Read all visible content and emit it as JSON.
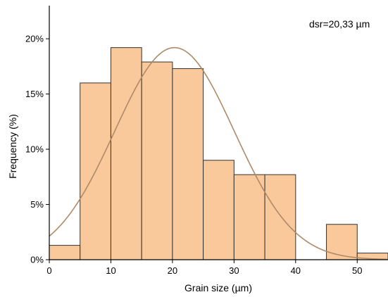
{
  "chart_data": {
    "type": "histogram",
    "xlabel": "Grain size (µm)",
    "ylabel": "Frequency (%)",
    "xlim": [
      0,
      55
    ],
    "ylim": [
      0,
      23
    ],
    "x_ticks": [
      0,
      10,
      20,
      30,
      40,
      50
    ],
    "x_tick_labels": [
      "0",
      "10",
      "20",
      "30",
      "40",
      "50"
    ],
    "y_ticks": [
      0,
      5,
      10,
      15,
      20
    ],
    "y_tick_labels": [
      "0%",
      "5%",
      "10%",
      "15%",
      "20%"
    ],
    "annotation": "dsr=20,33 µm",
    "bins": [
      {
        "x0": 0,
        "x1": 5,
        "value": 1.3
      },
      {
        "x0": 5,
        "x1": 10,
        "value": 16.0
      },
      {
        "x0": 10,
        "x1": 15,
        "value": 19.2
      },
      {
        "x0": 15,
        "x1": 20,
        "value": 17.9
      },
      {
        "x0": 20,
        "x1": 25,
        "value": 17.3
      },
      {
        "x0": 25,
        "x1": 30,
        "value": 9.0
      },
      {
        "x0": 30,
        "x1": 35,
        "value": 7.7
      },
      {
        "x0": 35,
        "x1": 40,
        "value": 7.7
      },
      {
        "x0": 40,
        "x1": 45,
        "value": 0
      },
      {
        "x0": 45,
        "x1": 50,
        "value": 3.2
      },
      {
        "x0": 50,
        "x1": 55,
        "value": 0.6
      }
    ],
    "fit_curve": {
      "type": "normal",
      "mean": 20.33,
      "sd": 9.7,
      "peak": 19.2
    },
    "bar_color": "#f9c89b",
    "bar_edge_color": "#333333",
    "curve_color": "#b08a68",
    "grid": false
  }
}
